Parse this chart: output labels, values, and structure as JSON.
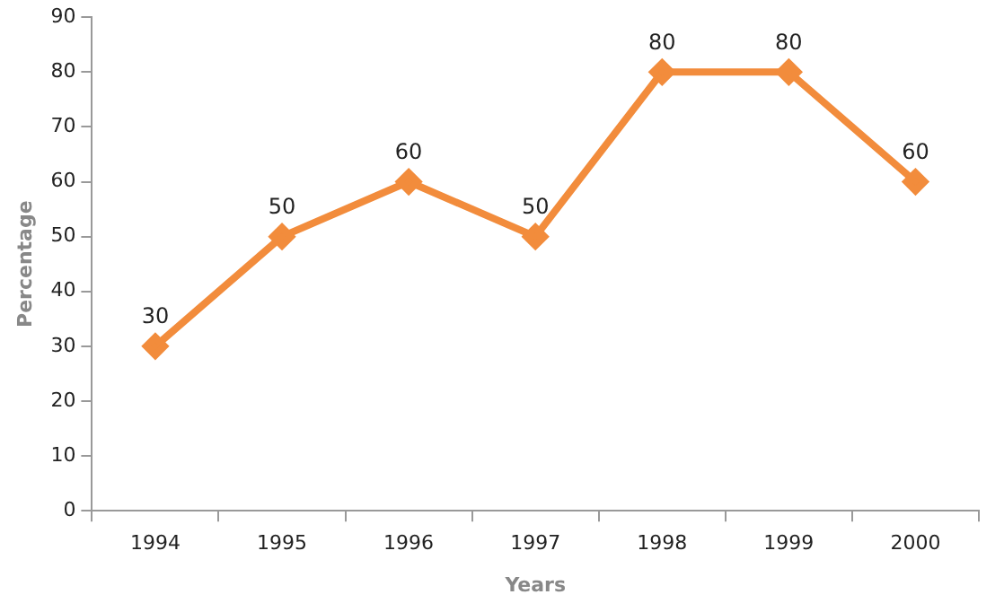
{
  "chart_data": {
    "type": "line",
    "xlabel": "Years",
    "ylabel": "Percentage",
    "categories": [
      "1994",
      "1995",
      "1996",
      "1997",
      "1998",
      "1999",
      "2000"
    ],
    "series": [
      {
        "color": "#f28c3c",
        "values": [
          30,
          50,
          60,
          50,
          80,
          80,
          60
        ]
      }
    ],
    "ylim": [
      0,
      90
    ],
    "yticks": [
      0,
      10,
      20,
      30,
      40,
      50,
      60,
      70,
      80,
      90
    ],
    "grid": false,
    "legend": false,
    "marker": "diamond",
    "line_style": "solid",
    "data_labels": true
  }
}
